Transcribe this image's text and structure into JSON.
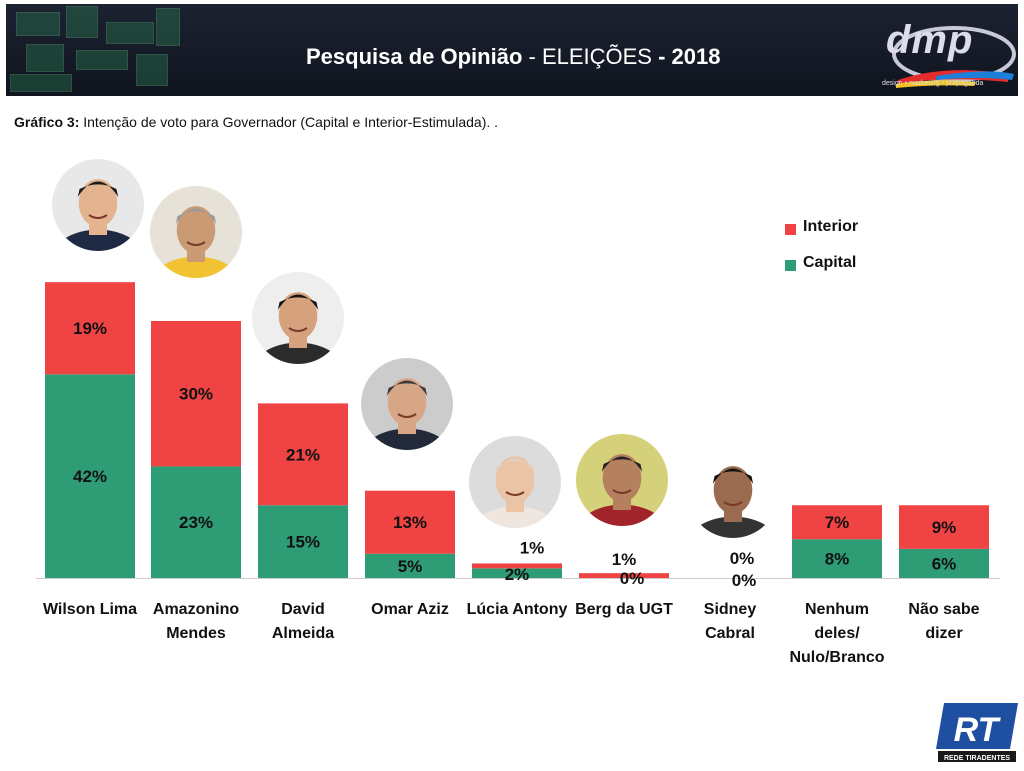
{
  "header": {
    "title_bold_left": "Pesquisa de Opinião",
    "title_mid": " - ELEIÇÕES ",
    "title_bold_right": "- 2018",
    "logo_text": "dmp",
    "logo_sub": "design • marketing • propaganda"
  },
  "subtitle": {
    "prefix": "Gráfico 3:",
    "text": " Intenção de voto para Governador (Capital e Interior-Estimulada). ."
  },
  "footer": {
    "logo_text": "RT",
    "logo_sub": "REDE TIRADENTES"
  },
  "colors": {
    "interior": "#f04444",
    "capital": "#2e9c74",
    "header_bg": "#161b27"
  },
  "chart_data": {
    "type": "bar",
    "stacked": true,
    "categories": [
      "Wilson Lima",
      "Amazonino Mendes",
      "David Almeida",
      "Omar Aziz",
      "Lúcia Antony",
      "Berg da UGT",
      "Sidney Cabral",
      "Nenhum deles/ Nulo/Branco",
      "Não sabe dizer"
    ],
    "category_lines": [
      [
        "Wilson Lima"
      ],
      [
        "Amazonino",
        "Mendes"
      ],
      [
        "David",
        "Almeida"
      ],
      [
        "Omar Aziz"
      ],
      [
        "Lúcia Antony"
      ],
      [
        "Berg da UGT"
      ],
      [
        "Sidney",
        "Cabral"
      ],
      [
        "Nenhum",
        "deles/",
        "Nulo/Branco"
      ],
      [
        "Não sabe",
        "dizer"
      ]
    ],
    "series": [
      {
        "name": "Capital",
        "values": [
          42,
          23,
          15,
          5,
          2,
          0,
          0,
          8,
          6
        ],
        "labels": [
          "42%",
          "23%",
          "15%",
          "5%",
          "2%",
          "0%",
          "0%",
          "8%",
          "6%"
        ]
      },
      {
        "name": "Interior",
        "values": [
          19,
          30,
          21,
          13,
          1,
          1,
          0,
          7,
          9
        ],
        "labels": [
          "19%",
          "30%",
          "21%",
          "13%",
          "1%",
          "1%",
          "0%",
          "7%",
          "9%"
        ]
      }
    ],
    "legend": [
      "Interior",
      "Capital"
    ],
    "legend_position": "top-right",
    "photos": [
      "Wilson Lima",
      "Amazonino Mendes",
      "David Almeida",
      "Omar Aziz",
      "Lúcia Antony",
      "Berg da UGT",
      "Sidney Cabral"
    ],
    "grid": false
  }
}
